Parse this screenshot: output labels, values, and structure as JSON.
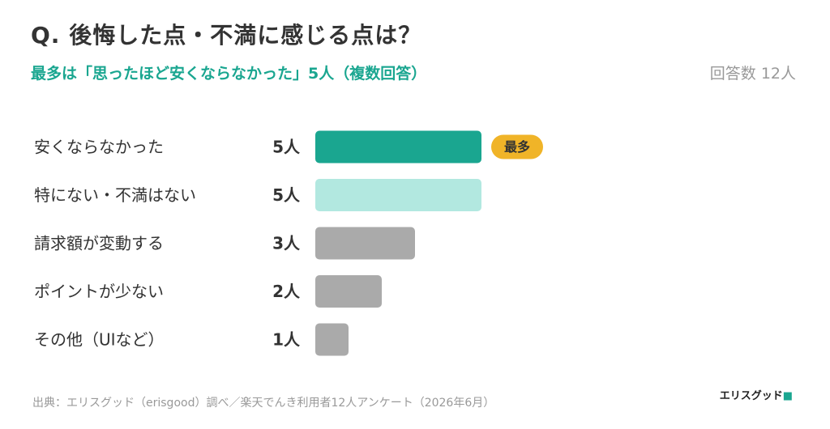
{
  "header": {
    "title": "Q. 後悔した点・不満に感じる点は？",
    "subtitle": "最多は「思ったほど安くならなかった」5人（複数回答）",
    "respondents": "回答数 12人"
  },
  "footer": {
    "source": "出典：エリスグッド（erisgood）調べ／楽天でんき利用者12人アンケート（2026年6月）",
    "logo": "エリスグッド"
  },
  "colors": {
    "top": "#1aa690",
    "second": "#b2e8e0",
    "other": "#aaaaaa",
    "badge": "#f0b428"
  },
  "chart_data": {
    "type": "bar",
    "orientation": "horizontal",
    "categories": [
      "安くならなかった",
      "特にない・不満はない",
      "請求額が変動する",
      "ポイントが少ない",
      "その他（UIなど）"
    ],
    "values": [
      5,
      5,
      3,
      2,
      1
    ],
    "value_labels": [
      "5人",
      "5人",
      "3人",
      "2人",
      "1人"
    ],
    "badge": {
      "label": "最多",
      "index": 0
    },
    "xlim": [
      0,
      5
    ]
  }
}
